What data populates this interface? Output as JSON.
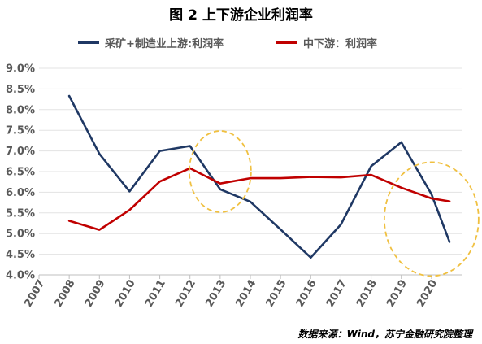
{
  "chart_data": {
    "type": "line",
    "title": "图 2  上下游企业利润率",
    "x": [
      "2007",
      "2008",
      "2009",
      "2010",
      "2011",
      "2012",
      "2013",
      "2014",
      "2015",
      "2016",
      "2017",
      "2018",
      "2019",
      "2020"
    ],
    "series": [
      {
        "name": "采矿+制造业上游:利润率",
        "color": "#1f3864",
        "points": [
          [
            2008,
            8.33
          ],
          [
            2009,
            6.93
          ],
          [
            2010,
            6.02
          ],
          [
            2011,
            7.0
          ],
          [
            2012,
            7.12
          ],
          [
            2013,
            6.07
          ],
          [
            2014,
            5.77
          ],
          [
            2015,
            5.1
          ],
          [
            2016,
            4.42
          ],
          [
            2017,
            5.22
          ],
          [
            2018,
            6.63
          ],
          [
            2019,
            7.21
          ],
          [
            2020,
            5.95
          ],
          [
            2020.6,
            4.8
          ]
        ]
      },
      {
        "name": "中下游：利润率",
        "color": "#c00000",
        "points": [
          [
            2008,
            5.31
          ],
          [
            2009,
            5.09
          ],
          [
            2010,
            5.57
          ],
          [
            2011,
            6.26
          ],
          [
            2012,
            6.58
          ],
          [
            2013,
            6.21
          ],
          [
            2014,
            6.34
          ],
          [
            2015,
            6.34
          ],
          [
            2016,
            6.37
          ],
          [
            2017,
            6.36
          ],
          [
            2018,
            6.42
          ],
          [
            2019,
            6.11
          ],
          [
            2020,
            5.85
          ],
          [
            2020.6,
            5.78
          ]
        ]
      }
    ],
    "yticks": [
      "4.0%",
      "4.5%",
      "5.0%",
      "5.5%",
      "6.0%",
      "6.5%",
      "7.0%",
      "7.5%",
      "8.0%",
      "8.5%",
      "9.0%"
    ],
    "ylim": [
      4.0,
      9.0
    ],
    "xlim": [
      2007,
      2021
    ],
    "ylabel": "",
    "xlabel": "",
    "grid": "horizontal",
    "legend_position": "top",
    "annotations": [
      {
        "shape": "dashed-ellipse",
        "color": "#f0c040",
        "center": [
          2013,
          6.5
        ]
      },
      {
        "shape": "dashed-ellipse",
        "color": "#f0c040",
        "center": [
          2020.0,
          5.35
        ]
      }
    ]
  },
  "source_note": "数据来源：Wind，苏宁金融研究院整理"
}
